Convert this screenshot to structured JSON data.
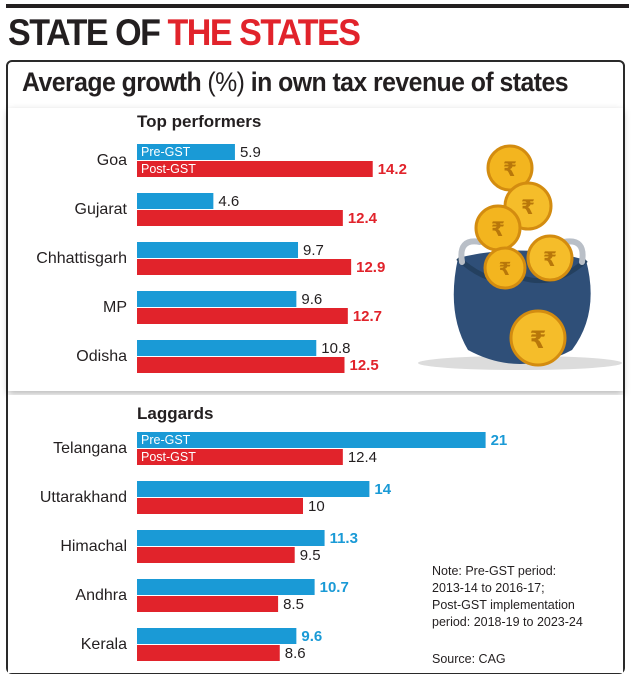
{
  "headline": {
    "part1": "STATE OF ",
    "part2": "THE STATES"
  },
  "subtitle": {
    "pre": "Average growth ",
    "unit": "(%)",
    "post": " in own tax revenue of states"
  },
  "colors": {
    "pre_gst": "#1a9ad6",
    "post_gst": "#e1232b",
    "headline_red": "#e1232b",
    "dark": "#231f20"
  },
  "chart_data": {
    "type": "bar",
    "orientation": "horizontal",
    "title": "Average growth (%) in own tax revenue of states",
    "legend": [
      "Pre-GST",
      "Post-GST"
    ],
    "sections": [
      {
        "title": "Top performers",
        "categories": [
          "Goa",
          "Gujarat",
          "Chhattisgarh",
          "MP",
          "Odisha"
        ],
        "series": [
          {
            "name": "Pre-GST",
            "values": [
              5.9,
              4.6,
              9.7,
              9.6,
              10.8
            ]
          },
          {
            "name": "Post-GST",
            "values": [
              14.2,
              12.4,
              12.9,
              12.7,
              12.5
            ]
          }
        ]
      },
      {
        "title": "Laggards",
        "categories": [
          "Telangana",
          "Uttarakhand",
          "Himachal",
          "Andhra",
          "Kerala"
        ],
        "series": [
          {
            "name": "Pre-GST",
            "values": [
              21,
              14,
              11.3,
              10.7,
              9.6
            ]
          },
          {
            "name": "Post-GST",
            "values": [
              12.4,
              10,
              9.5,
              8.5,
              8.6
            ]
          }
        ]
      }
    ]
  },
  "note": {
    "lines": [
      "Note: Pre-GST period:",
      "2013-14 to 2016-17;",
      "Post-GST implementation",
      "period: 2018-19 to 2023-24"
    ],
    "source": "Source: CAG"
  }
}
